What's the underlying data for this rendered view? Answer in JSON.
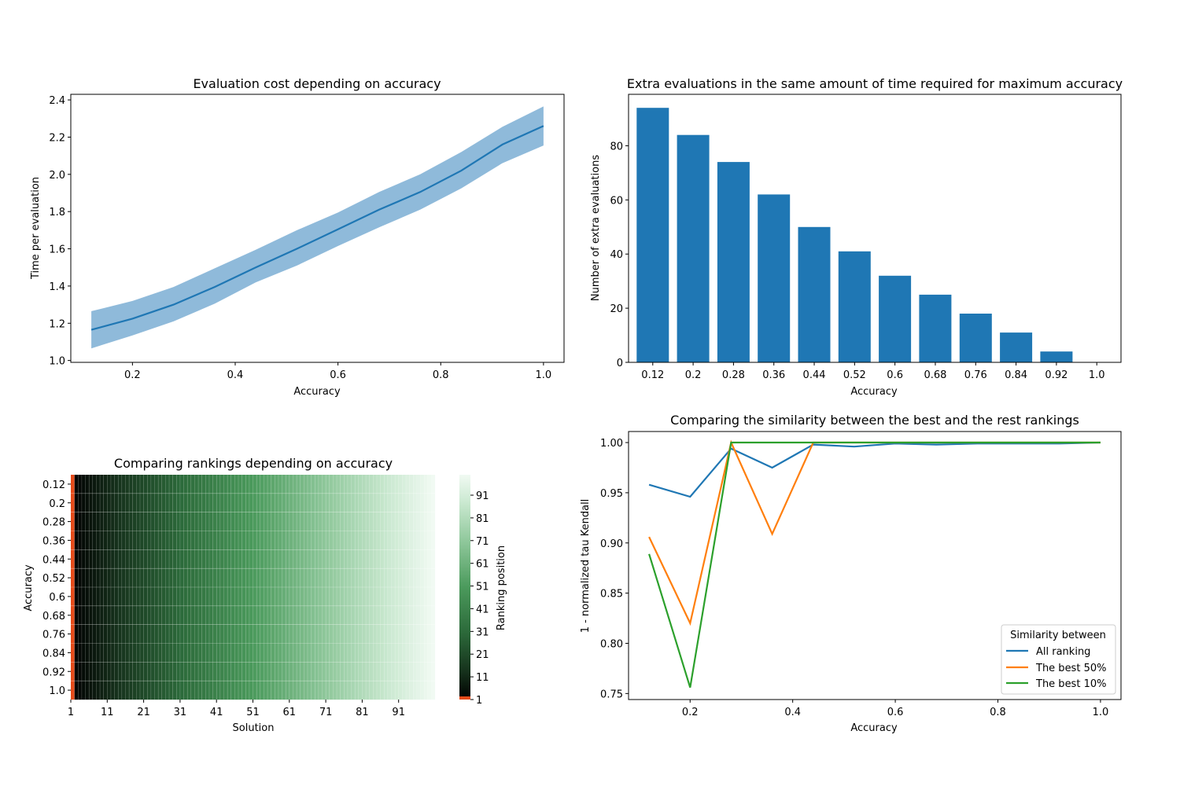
{
  "colors": {
    "line": "#1f77b4",
    "band": "#8fbada",
    "bar": "#1f77b4",
    "series": [
      "#1f77b4",
      "#ff7f0e",
      "#2ca02c"
    ],
    "heatmap_low": "#000000",
    "heatmap_mid": "#3c8a4d",
    "heatmap_high": "#f1faf3",
    "first_solution": "#e64a19"
  },
  "chart_data": [
    {
      "type": "line",
      "title": "Evaluation cost depending on accuracy",
      "xlabel": "Accuracy",
      "ylabel": "Time per evaluation",
      "xlim": [
        0.08,
        1.04
      ],
      "ylim": [
        0.99,
        2.43
      ],
      "xticks": [
        "0.2",
        "0.4",
        "0.6",
        "0.8",
        "1.0"
      ],
      "yticks": [
        "1.0",
        "1.2",
        "1.4",
        "1.6",
        "1.8",
        "2.0",
        "2.2",
        "2.4"
      ],
      "x": [
        0.12,
        0.2,
        0.28,
        0.36,
        0.44,
        0.52,
        0.6,
        0.68,
        0.76,
        0.84,
        0.92,
        1.0
      ],
      "mean": [
        1.165,
        1.225,
        1.3,
        1.395,
        1.5,
        1.6,
        1.705,
        1.81,
        1.905,
        2.02,
        2.16,
        2.26
      ],
      "lower": [
        1.065,
        1.135,
        1.21,
        1.305,
        1.42,
        1.51,
        1.615,
        1.715,
        1.81,
        1.925,
        2.06,
        2.155
      ],
      "upper": [
        1.265,
        1.32,
        1.395,
        1.495,
        1.595,
        1.7,
        1.795,
        1.905,
        2.0,
        2.12,
        2.255,
        2.365
      ],
      "grid": false
    },
    {
      "type": "bar",
      "title": "Extra evaluations in the same amount of time required for maximum accuracy",
      "xlabel": "Accuracy",
      "ylabel": "Number of extra evaluations",
      "categories": [
        "0.12",
        "0.2",
        "0.28",
        "0.36",
        "0.44",
        "0.52",
        "0.6",
        "0.68",
        "0.76",
        "0.84",
        "0.92",
        "1.0"
      ],
      "values": [
        94,
        84,
        74,
        62,
        50,
        41,
        32,
        25,
        18,
        11,
        4,
        0
      ],
      "ylim": [
        0,
        99
      ],
      "yticks": [
        "0",
        "20",
        "40",
        "60",
        "80"
      ],
      "grid": false
    },
    {
      "type": "heatmap",
      "title": "Comparing rankings depending on accuracy",
      "xlabel": "Solution",
      "ylabel": "Accuracy",
      "rows": [
        "0.12",
        "0.2",
        "0.28",
        "0.36",
        "0.44",
        "0.52",
        "0.6",
        "0.68",
        "0.76",
        "0.84",
        "0.92",
        "1.0"
      ],
      "xticks": [
        "1",
        "11",
        "21",
        "31",
        "41",
        "51",
        "61",
        "71",
        "81",
        "91"
      ],
      "n_solutions": 100,
      "colorbar_label": "Ranking position",
      "colorbar_ticks": [
        "1",
        "11",
        "21",
        "31",
        "41",
        "51",
        "61",
        "71",
        "81",
        "91"
      ],
      "value_range": [
        1,
        100
      ]
    },
    {
      "type": "line",
      "title": "Comparing the similarity between the best and the rest rankings",
      "xlabel": "Accuracy",
      "ylabel": "1 - normalized tau Kendall",
      "xlim": [
        0.08,
        1.04
      ],
      "ylim": [
        0.744,
        1.011
      ],
      "xticks": [
        "0.2",
        "0.4",
        "0.6",
        "0.8",
        "1.0"
      ],
      "yticks": [
        "0.75",
        "0.80",
        "0.85",
        "0.90",
        "0.95",
        "1.00"
      ],
      "x": [
        0.12,
        0.2,
        0.28,
        0.36,
        0.44,
        0.52,
        0.6,
        0.68,
        0.76,
        0.84,
        0.92,
        1.0
      ],
      "series": [
        {
          "name": "All ranking",
          "values": [
            0.958,
            0.946,
            0.994,
            0.975,
            0.998,
            0.996,
            0.999,
            0.998,
            0.999,
            0.999,
            0.999,
            1.0
          ]
        },
        {
          "name": "The best 50%",
          "values": [
            0.906,
            0.82,
            1.0,
            0.909,
            1.0,
            1.0,
            1.0,
            1.0,
            1.0,
            1.0,
            1.0,
            1.0
          ]
        },
        {
          "name": "The best 10%",
          "values": [
            0.889,
            0.756,
            1.0,
            1.0,
            1.0,
            1.0,
            1.0,
            1.0,
            1.0,
            1.0,
            1.0,
            1.0
          ]
        }
      ],
      "legend_title": "Similarity between",
      "legend_position": "lower right",
      "grid": false
    }
  ]
}
